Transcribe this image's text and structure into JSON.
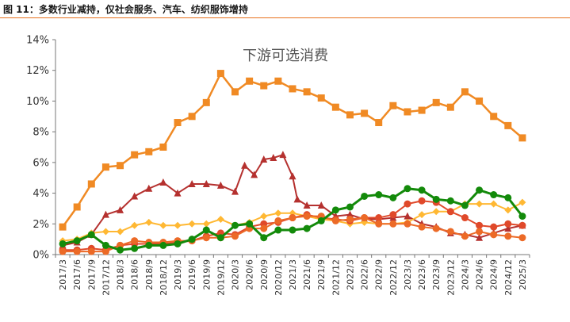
{
  "header": {
    "title": "图 11：多数行业减持，仅社会服务、汽车、纺织服饰增持"
  },
  "chart_data": {
    "type": "line",
    "title": "下游可选消费",
    "ylim": [
      0,
      14
    ],
    "yticks": [
      "0%",
      "2%",
      "4%",
      "6%",
      "8%",
      "10%",
      "12%",
      "14%"
    ],
    "grid": false,
    "x": [
      "2017/3",
      "2017/6",
      "2017/9",
      "2017/12",
      "2018/3",
      "2018/6",
      "2018/9",
      "2018/12",
      "2019/3",
      "2019/6",
      "2019/9",
      "2019/12",
      "2020/3",
      "2020/6",
      "2020/9",
      "2020/12",
      "2021/3",
      "2021/6",
      "2021/9",
      "2021/12",
      "2022/3",
      "2022/6",
      "2022/9",
      "2022/12",
      "2023/3",
      "2023/6",
      "2023/9",
      "2023/12",
      "2024/3",
      "2024/6",
      "2024/9",
      "2024/12",
      "2025/3"
    ],
    "series": [
      {
        "color": "#f08a24",
        "marker": "square",
        "line_width": 2.5,
        "values": [
          1.8,
          3.1,
          4.6,
          5.7,
          5.8,
          6.5,
          6.7,
          7.0,
          8.6,
          9.0,
          9.9,
          11.8,
          10.6,
          11.3,
          11.0,
          11.3,
          10.8,
          10.6,
          10.2,
          9.6,
          9.1,
          9.2,
          8.6,
          9.7,
          9.3,
          9.4,
          9.9,
          9.6,
          10.6,
          10.0,
          9.0,
          8.4,
          7.6
        ]
      },
      {
        "color": "#b5312f",
        "marker": "triangle",
        "line_width": 2,
        "x": [
          "2017/3",
          "2017/6",
          "2017/9",
          "2017/12",
          "2018/3",
          "2018/6",
          "2018/9",
          "2018/12",
          "2019/3",
          "2019/6",
          "2019/9",
          "2019/12",
          "2020/3",
          "2020/5",
          "2020/7",
          "2020/9",
          "2020/11",
          "2021/1",
          "2021/3",
          "2021/4",
          "2021/6",
          "2021/9",
          "2021/12",
          "2022/3",
          "2022/6",
          "2022/9",
          "2022/12",
          "2023/3",
          "2023/6",
          "2023/9",
          "2023/12",
          "2024/3",
          "2024/6",
          "2024/9",
          "2024/12",
          "2025/3"
        ],
        "values": [
          0.6,
          0.8,
          1.3,
          2.6,
          2.9,
          3.8,
          4.3,
          4.7,
          4.0,
          4.6,
          4.6,
          4.5,
          4.1,
          5.8,
          5.2,
          6.2,
          6.3,
          6.5,
          5.1,
          3.6,
          3.2,
          3.2,
          2.5,
          2.6,
          2.3,
          2.3,
          2.4,
          2.5,
          2.0,
          1.8,
          1.4,
          1.3,
          1.1,
          1.4,
          1.7,
          1.9
        ]
      },
      {
        "color": "#ffb833",
        "marker": "diamond",
        "line_width": 2,
        "values": [
          0.9,
          1.0,
          1.4,
          1.5,
          1.5,
          1.9,
          2.1,
          1.9,
          1.9,
          2.0,
          2.0,
          2.3,
          1.9,
          2.1,
          2.5,
          2.7,
          2.7,
          2.5,
          2.3,
          2.2,
          2.0,
          2.1,
          2.0,
          2.0,
          2.1,
          2.6,
          2.8,
          2.8,
          3.3,
          3.3,
          3.3,
          2.9,
          3.4
        ]
      },
      {
        "color": "#e0492a",
        "marker": "circle",
        "line_width": 2,
        "values": [
          0.3,
          0.3,
          0.4,
          0.3,
          0.6,
          0.7,
          0.7,
          0.7,
          0.8,
          0.9,
          1.2,
          1.4,
          1.3,
          1.8,
          2.0,
          2.1,
          2.4,
          2.6,
          2.4,
          2.3,
          2.2,
          2.4,
          2.4,
          2.6,
          3.3,
          3.5,
          3.4,
          2.8,
          2.4,
          1.9,
          1.8,
          2.0,
          1.9
        ]
      },
      {
        "color": "#ec6a27",
        "marker": "circle",
        "line_width": 2,
        "values": [
          0.2,
          0.2,
          0.2,
          0.2,
          0.6,
          0.9,
          0.8,
          0.8,
          0.9,
          0.9,
          1.1,
          1.1,
          1.2,
          1.7,
          1.7,
          2.2,
          2.4,
          2.5,
          2.5,
          2.2,
          2.3,
          2.4,
          2.0,
          2.0,
          2.0,
          1.8,
          1.7,
          1.5,
          1.2,
          1.5,
          1.3,
          1.2,
          1.1
        ]
      },
      {
        "color": "#138a0a",
        "marker": "circle",
        "line_width": 3,
        "values": [
          0.7,
          0.9,
          1.3,
          0.6,
          0.3,
          0.4,
          0.6,
          0.6,
          0.7,
          1.0,
          1.6,
          1.1,
          1.9,
          2.0,
          1.1,
          1.6,
          1.6,
          1.7,
          2.2,
          2.9,
          3.1,
          3.8,
          3.9,
          3.7,
          4.3,
          4.2,
          3.6,
          3.5,
          3.2,
          4.2,
          3.9,
          3.7,
          2.5
        ]
      }
    ]
  }
}
